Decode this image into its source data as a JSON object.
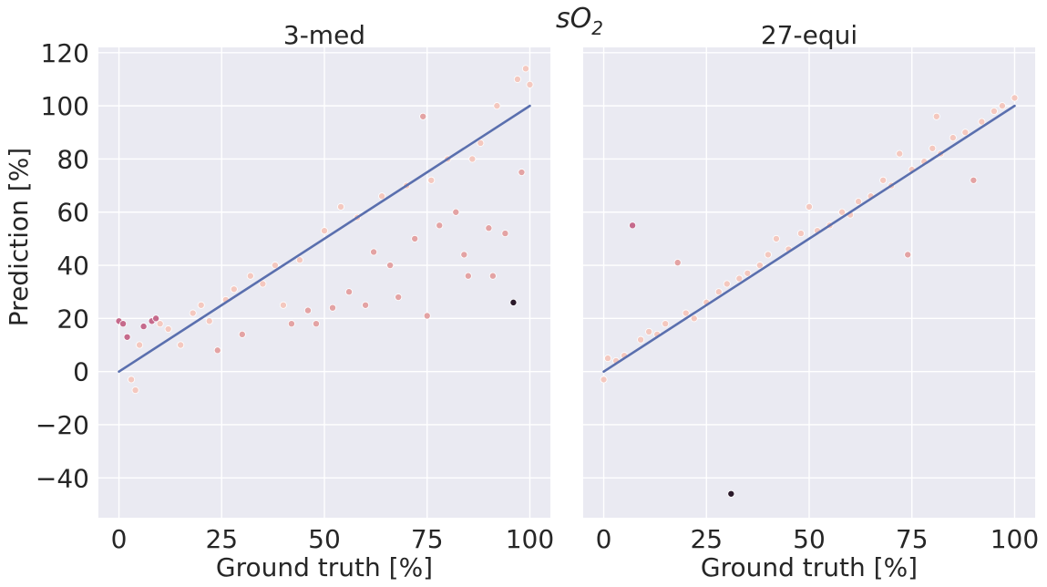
{
  "suptitle": {
    "main": "sO",
    "sub": "2"
  },
  "colors": {
    "panel_bg": "#eaeaf2",
    "grid": "#ffffff",
    "fit_line": "#5a6fae",
    "point_light": "#f4c8bf",
    "point_mid": "#e3a3a4",
    "point_dark": "#c56a8c",
    "point_outlier": "#2b1a2b",
    "point_edge": "#ffffff"
  },
  "chart_data": [
    {
      "type": "scatter",
      "title": "3-med",
      "xlabel": "Ground truth [%]",
      "ylabel": "Prediction [%]",
      "xlim": [
        -5,
        105
      ],
      "ylim": [
        -55,
        122
      ],
      "xticks": [
        0,
        25,
        50,
        75,
        100
      ],
      "yticks": [
        -40,
        -20,
        0,
        20,
        40,
        60,
        80,
        100,
        120
      ],
      "grid": true,
      "reference_line": {
        "x": [
          0,
          100
        ],
        "y": [
          0,
          100
        ]
      },
      "points": [
        [
          0,
          19
        ],
        [
          1,
          18
        ],
        [
          2,
          13
        ],
        [
          3,
          -3
        ],
        [
          4,
          -7
        ],
        [
          5,
          10
        ],
        [
          6,
          17
        ],
        [
          8,
          19
        ],
        [
          9,
          20
        ],
        [
          10,
          18
        ],
        [
          12,
          16
        ],
        [
          15,
          10
        ],
        [
          18,
          22
        ],
        [
          20,
          25
        ],
        [
          22,
          19
        ],
        [
          24,
          8
        ],
        [
          26,
          27
        ],
        [
          28,
          31
        ],
        [
          30,
          14
        ],
        [
          32,
          36
        ],
        [
          35,
          33
        ],
        [
          38,
          40
        ],
        [
          40,
          25
        ],
        [
          42,
          18
        ],
        [
          44,
          42
        ],
        [
          46,
          23
        ],
        [
          48,
          18
        ],
        [
          50,
          53
        ],
        [
          52,
          24
        ],
        [
          54,
          62
        ],
        [
          56,
          30
        ],
        [
          58,
          58
        ],
        [
          60,
          25
        ],
        [
          62,
          45
        ],
        [
          64,
          66
        ],
        [
          66,
          40
        ],
        [
          68,
          28
        ],
        [
          70,
          70
        ],
        [
          72,
          50
        ],
        [
          74,
          96
        ],
        [
          75,
          21
        ],
        [
          76,
          72
        ],
        [
          78,
          55
        ],
        [
          80,
          80
        ],
        [
          82,
          60
        ],
        [
          84,
          44
        ],
        [
          85,
          36
        ],
        [
          86,
          80
        ],
        [
          88,
          86
        ],
        [
          90,
          54
        ],
        [
          91,
          36
        ],
        [
          92,
          100
        ],
        [
          94,
          52
        ],
        [
          96,
          26
        ],
        [
          97,
          110
        ],
        [
          98,
          75
        ],
        [
          99,
          114
        ],
        [
          100,
          108
        ]
      ]
    },
    {
      "type": "scatter",
      "title": "27-equi",
      "xlabel": "Ground truth [%]",
      "ylabel": "",
      "xlim": [
        -5,
        105
      ],
      "ylim": [
        -55,
        122
      ],
      "xticks": [
        0,
        25,
        50,
        75,
        100
      ],
      "yticks": [
        -40,
        -20,
        0,
        20,
        40,
        60,
        80,
        100,
        120
      ],
      "grid": true,
      "reference_line": {
        "x": [
          0,
          100
        ],
        "y": [
          0,
          100
        ]
      },
      "points": [
        [
          0,
          -3
        ],
        [
          1,
          5
        ],
        [
          3,
          4
        ],
        [
          5,
          6
        ],
        [
          7,
          55
        ],
        [
          9,
          12
        ],
        [
          11,
          15
        ],
        [
          13,
          14
        ],
        [
          15,
          18
        ],
        [
          18,
          41
        ],
        [
          20,
          22
        ],
        [
          22,
          20
        ],
        [
          25,
          26
        ],
        [
          28,
          30
        ],
        [
          30,
          33
        ],
        [
          31,
          -46
        ],
        [
          33,
          35
        ],
        [
          35,
          37
        ],
        [
          38,
          40
        ],
        [
          40,
          44
        ],
        [
          42,
          50
        ],
        [
          45,
          46
        ],
        [
          48,
          52
        ],
        [
          50,
          62
        ],
        [
          52,
          53
        ],
        [
          55,
          55
        ],
        [
          58,
          60
        ],
        [
          60,
          59
        ],
        [
          62,
          64
        ],
        [
          65,
          66
        ],
        [
          68,
          72
        ],
        [
          70,
          70
        ],
        [
          72,
          82
        ],
        [
          74,
          44
        ],
        [
          75,
          76
        ],
        [
          78,
          79
        ],
        [
          80,
          84
        ],
        [
          81,
          96
        ],
        [
          82,
          82
        ],
        [
          85,
          88
        ],
        [
          88,
          90
        ],
        [
          90,
          72
        ],
        [
          92,
          94
        ],
        [
          95,
          98
        ],
        [
          97,
          100
        ],
        [
          100,
          103
        ]
      ]
    }
  ]
}
